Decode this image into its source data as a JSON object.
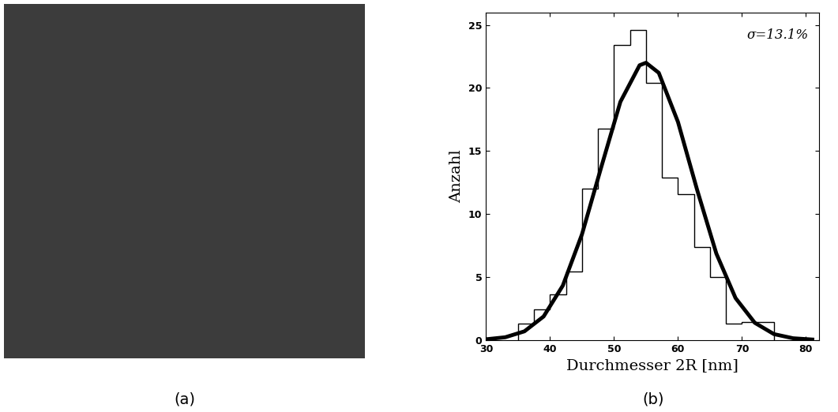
{
  "image_panel": {
    "caption": "(a)"
  },
  "chart_data": {
    "type": "histogram",
    "caption": "(b)",
    "x_label": "Durchmesser 2R [nm]",
    "y_label": "Anzahl",
    "annotation": "σ=13.1%",
    "bins": [
      35,
      37.5,
      40,
      42.5,
      45,
      47.5,
      50,
      52.5,
      55,
      57.5,
      60,
      62.5,
      65,
      67.5,
      70,
      72.5,
      75
    ],
    "counts": [
      1.3,
      2.4,
      3.6,
      5.4,
      12,
      16.8,
      23.4,
      24.6,
      20.4,
      12.9,
      11.6,
      7.4,
      5,
      1.3,
      1.4,
      1.4
    ],
    "color": "#000000",
    "fit": {
      "type": "line",
      "color": "#000000",
      "x": [
        30,
        33,
        36,
        39,
        42,
        45,
        48,
        51,
        54,
        55,
        57,
        60,
        63,
        66,
        69,
        72,
        75,
        78,
        81
      ],
      "values": [
        0.05,
        0.21,
        0.68,
        1.86,
        4.31,
        8.39,
        13.7,
        18.9,
        21.8,
        22,
        21.2,
        17.3,
        11.9,
        6.85,
        3.32,
        1.36,
        0.46,
        0.13,
        0.03
      ]
    },
    "xlim": [
      30,
      82
    ],
    "xticks": [
      30,
      40,
      50,
      60,
      70,
      80
    ],
    "ylim": [
      0,
      26
    ],
    "yticks": [
      0,
      5,
      10,
      15,
      20,
      25
    ]
  }
}
